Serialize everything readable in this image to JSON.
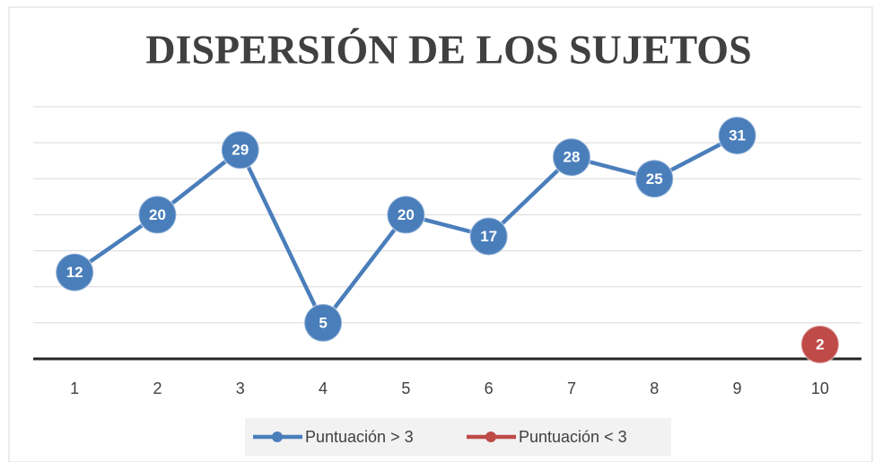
{
  "chart_data": {
    "type": "line",
    "title": "DISPERSIÓN DE LOS SUJETOS",
    "categories": [
      "1",
      "2",
      "3",
      "4",
      "5",
      "6",
      "7",
      "8",
      "9",
      "10"
    ],
    "series": [
      {
        "name": "Puntuación > 3",
        "color": "#4a7ebb",
        "values": [
          12,
          20,
          29,
          5,
          20,
          17,
          28,
          25,
          31,
          null
        ]
      },
      {
        "name": "Puntuación < 3",
        "color": "#be4b48",
        "values": [
          null,
          null,
          null,
          null,
          null,
          null,
          null,
          null,
          null,
          2
        ]
      }
    ],
    "ylim": [
      0,
      35
    ],
    "yticks": [
      0,
      5,
      10,
      15,
      20,
      25,
      30,
      35
    ],
    "grid": true,
    "legend": "bottom"
  }
}
